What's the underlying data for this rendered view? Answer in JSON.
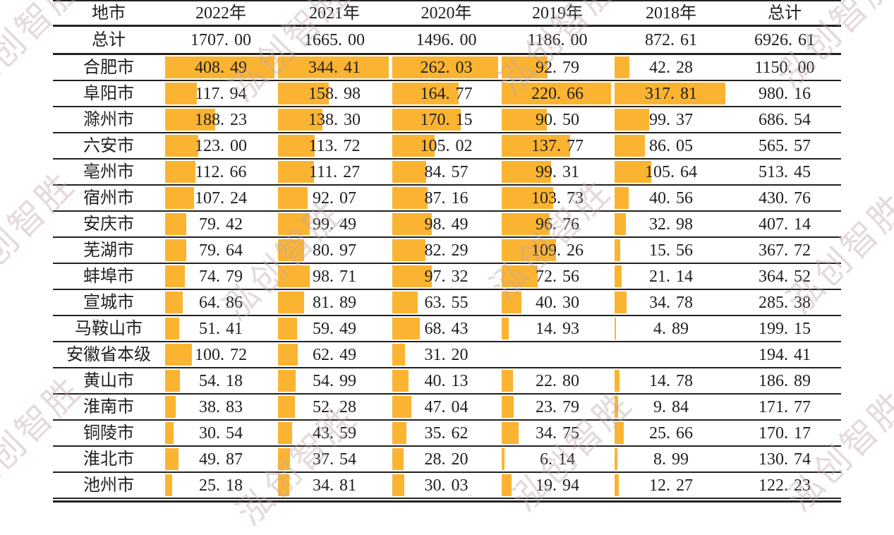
{
  "watermark": {
    "text": "泓创智胜"
  },
  "colors": {
    "bar": "#FBB431",
    "rule": "#222222",
    "watermark": "rgba(193,166,166,0.42)"
  },
  "chart_data": {
    "type": "table",
    "columns": [
      "地市",
      "2022年",
      "2021年",
      "2020年",
      "2019年",
      "2018年",
      "总计"
    ],
    "total_row_label": "总计",
    "total_row_values": [
      "1707.00",
      "1665.00",
      "1496.00",
      "1186.00",
      "872.61",
      "6926.61"
    ],
    "rows": [
      {
        "city": "合肥市",
        "values": [
          "408.49",
          "344.41",
          "262.03",
          "92.79",
          "42.28"
        ],
        "total": "1150.00"
      },
      {
        "city": "阜阳市",
        "values": [
          "117.94",
          "158.98",
          "164.77",
          "220.66",
          "317.81"
        ],
        "total": "980.16"
      },
      {
        "city": "滁州市",
        "values": [
          "188.23",
          "138.30",
          "170.15",
          "90.50",
          "99.37"
        ],
        "total": "686.54"
      },
      {
        "city": "六安市",
        "values": [
          "123.00",
          "113.72",
          "105.02",
          "137.77",
          "86.05"
        ],
        "total": "565.57"
      },
      {
        "city": "亳州市",
        "values": [
          "112.66",
          "111.27",
          "84.57",
          "99.31",
          "105.64"
        ],
        "total": "513.45"
      },
      {
        "city": "宿州市",
        "values": [
          "107.24",
          "92.07",
          "87.16",
          "103.73",
          "40.56"
        ],
        "total": "430.76"
      },
      {
        "city": "安庆市",
        "values": [
          "79.42",
          "99.49",
          "98.49",
          "96.76",
          "32.98"
        ],
        "total": "407.14"
      },
      {
        "city": "芜湖市",
        "values": [
          "79.64",
          "80.97",
          "82.29",
          "109.26",
          "15.56"
        ],
        "total": "367.72"
      },
      {
        "city": "蚌埠市",
        "values": [
          "74.79",
          "98.71",
          "97.32",
          "72.56",
          "21.14"
        ],
        "total": "364.52"
      },
      {
        "city": "宣城市",
        "values": [
          "64.86",
          "81.89",
          "63.55",
          "40.30",
          "34.78"
        ],
        "total": "285.38"
      },
      {
        "city": "马鞍山市",
        "values": [
          "51.41",
          "59.49",
          "68.43",
          "14.93",
          "4.89"
        ],
        "total": "199.15"
      },
      {
        "city": "安徽省本级",
        "values": [
          "100.72",
          "62.49",
          "31.20",
          "",
          ""
        ],
        "total": "194.41"
      },
      {
        "city": "黄山市",
        "values": [
          "54.18",
          "54.99",
          "40.13",
          "22.80",
          "14.78"
        ],
        "total": "186.89"
      },
      {
        "city": "淮南市",
        "values": [
          "38.83",
          "52.28",
          "47.04",
          "23.79",
          "9.84"
        ],
        "total": "171.77"
      },
      {
        "city": "铜陵市",
        "values": [
          "30.54",
          "43.59",
          "35.62",
          "34.75",
          "25.66"
        ],
        "total": "170.17"
      },
      {
        "city": "淮北市",
        "values": [
          "49.87",
          "37.54",
          "28.20",
          "6.14",
          "8.99"
        ],
        "total": "130.74"
      },
      {
        "city": "池州市",
        "values": [
          "25.18",
          "34.81",
          "30.03",
          "19.94",
          "12.27"
        ],
        "total": "122.23"
      }
    ],
    "column_max": [
      408.49,
      344.41,
      262.03,
      220.66,
      317.81
    ],
    "legend_position": "none",
    "grid": "horizontal-rules"
  }
}
